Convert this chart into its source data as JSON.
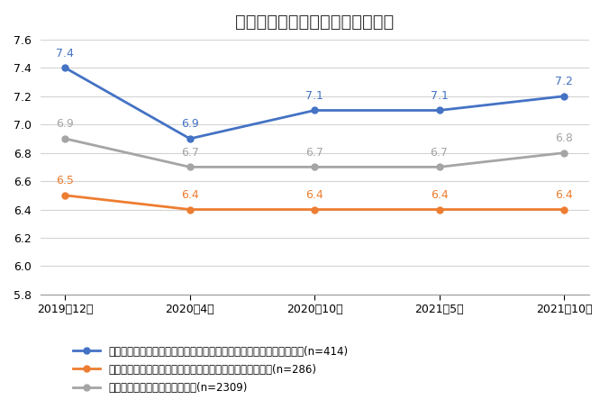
{
  "title": "在宅勤務の経験と各時点の生産性",
  "x_labels": [
    "2019年12月",
    "2020年4月",
    "2020年10月",
    "2021年5月",
    "2021年10月"
  ],
  "series": [
    {
      "label": "もともと在宅勤務をしておらず、コロナ以降に在宅勤務をし続けた人(n=414)",
      "values": [
        7.4,
        6.9,
        7.1,
        7.1,
        7.2
      ],
      "color": "#4472C4",
      "marker": "o"
    },
    {
      "label": "もともと在宅勤務していた人で、在宅勤務し続けている人(n=286)",
      "values": [
        6.5,
        6.4,
        6.4,
        6.4,
        6.4
      ],
      "color": "#ED7D31",
      "marker": "o"
    },
    {
      "label": "一度も在宅勤務をしていない人(n=2309)",
      "values": [
        6.9,
        6.7,
        6.7,
        6.7,
        6.8
      ],
      "color": "#A5A5A5",
      "marker": "o"
    }
  ],
  "ylim": [
    5.8,
    7.6
  ],
  "yticks": [
    5.8,
    6.0,
    6.2,
    6.4,
    6.6,
    6.8,
    7.0,
    7.2,
    7.4,
    7.6
  ],
  "background_color": "#FFFFFF",
  "grid_color": "#D3D3D3",
  "title_fontsize": 14,
  "label_fontsize": 9,
  "tick_fontsize": 9,
  "legend_fontsize": 8.5,
  "line_width": 2.0,
  "marker_size": 5
}
